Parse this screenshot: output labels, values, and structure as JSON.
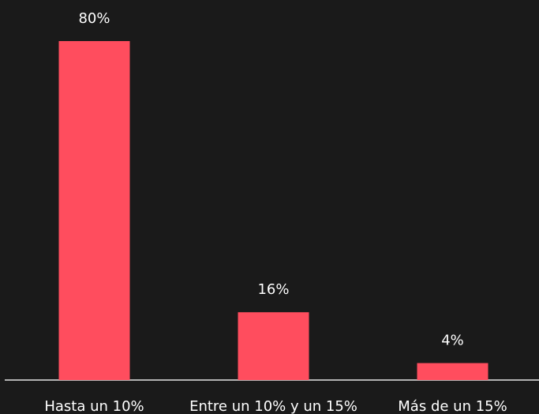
{
  "chart_data": {
    "type": "bar",
    "categories": [
      "Hasta un 10%",
      "Entre un 10% y un 15%",
      "Más de un 15%"
    ],
    "values": [
      80,
      16,
      4
    ],
    "value_labels": [
      "80%",
      "16%",
      "4%"
    ],
    "color": "#ff4d5e"
  }
}
